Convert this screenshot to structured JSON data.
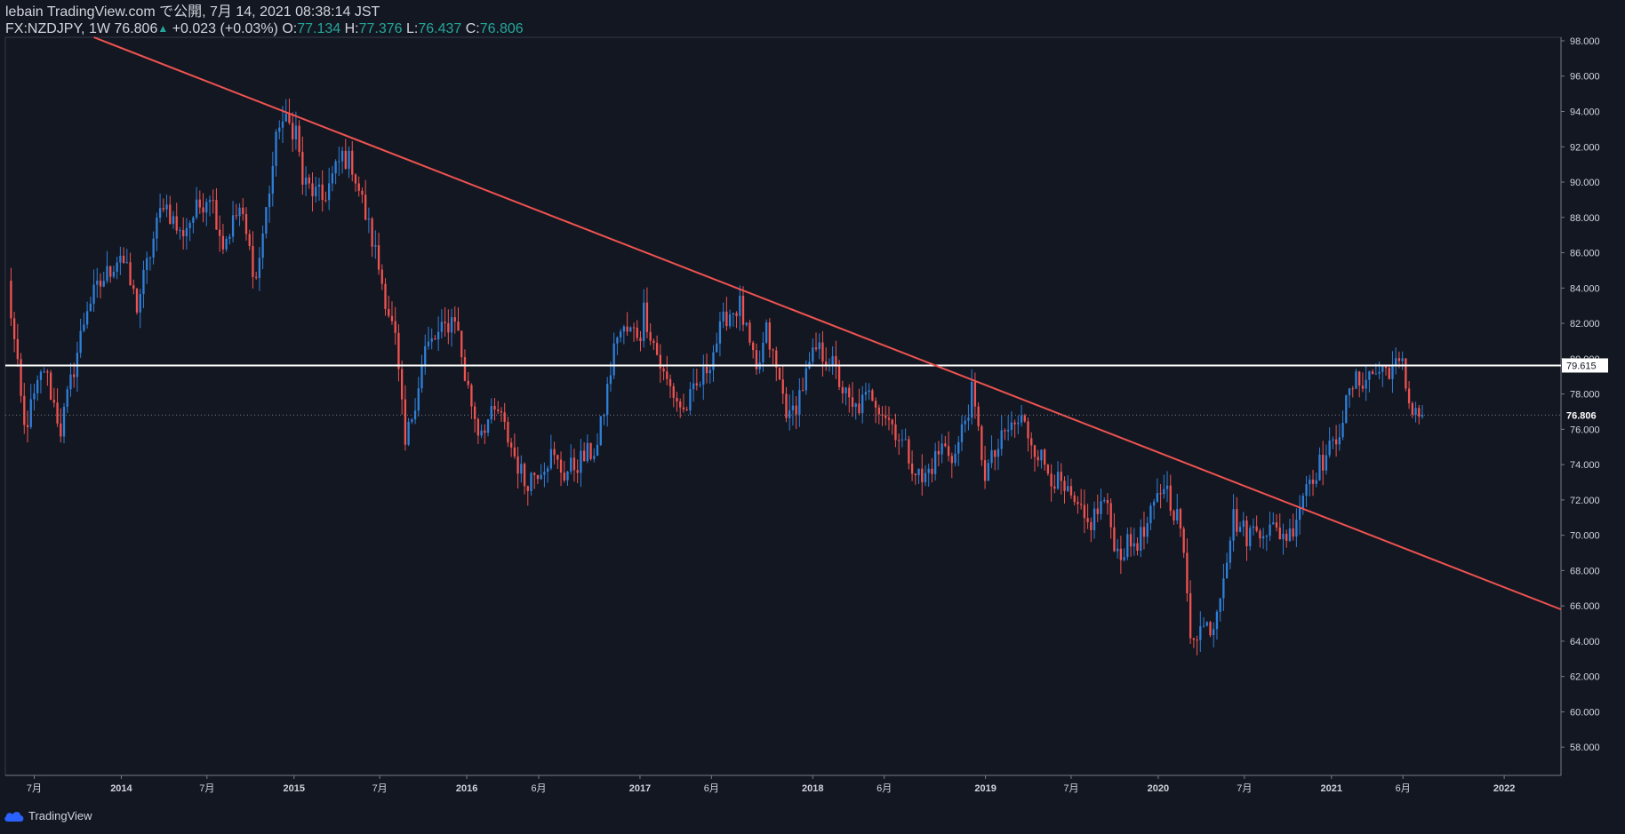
{
  "header": {
    "published_line": "lebain TradingView.com で公開, 7月 14, 2021 08:38:14 JST",
    "symbol": "FX:NZDJPY, 1W",
    "last": "76.806",
    "change_arrow": "▲",
    "change": "+0.023 (+0.03%)",
    "o_label": "O:",
    "o_value": "77.134",
    "h_label": "H:",
    "h_value": "77.376",
    "l_label": "L:",
    "l_value": "76.437",
    "c_label": "C:",
    "c_value": "76.806"
  },
  "footer": {
    "brand": "TradingView"
  },
  "colors": {
    "background": "#131722",
    "up": "#2f7fd8",
    "down": "#ef5350",
    "trendline": "#ef5350",
    "hline": "#ffffff",
    "axis_text": "#d1d4dc",
    "grid_border": "#363a45"
  },
  "chart_data": {
    "type": "candlestick",
    "title": "",
    "ylim": [
      56.4,
      98.2
    ],
    "y_ticks": [
      58,
      60,
      62,
      64,
      66,
      68,
      70,
      72,
      74,
      76,
      78,
      80,
      82,
      84,
      86,
      88,
      90,
      92,
      94,
      96,
      98
    ],
    "y_tick_labels": [
      "58.000",
      "60.000",
      "62.000",
      "64.000",
      "66.000",
      "68.000",
      "70.000",
      "72.000",
      "74.000",
      "76.000",
      "78.000",
      "80.000",
      "82.000",
      "84.000",
      "86.000",
      "88.000",
      "90.000",
      "92.000",
      "94.000",
      "96.000",
      "98.000"
    ],
    "x_range": [
      "2013-05-01",
      "2022-05-01"
    ],
    "x_ticks": [
      {
        "date": "2013-07-01",
        "label": "7月",
        "bold": false
      },
      {
        "date": "2014-01-01",
        "label": "2014",
        "bold": true
      },
      {
        "date": "2014-07-01",
        "label": "7月",
        "bold": false
      },
      {
        "date": "2015-01-01",
        "label": "2015",
        "bold": true
      },
      {
        "date": "2015-07-01",
        "label": "7月",
        "bold": false
      },
      {
        "date": "2016-01-01",
        "label": "2016",
        "bold": true
      },
      {
        "date": "2016-06-01",
        "label": "6月",
        "bold": false
      },
      {
        "date": "2017-01-01",
        "label": "2017",
        "bold": true
      },
      {
        "date": "2017-06-01",
        "label": "6月",
        "bold": false
      },
      {
        "date": "2018-01-01",
        "label": "2018",
        "bold": true
      },
      {
        "date": "2018-06-01",
        "label": "6月",
        "bold": false
      },
      {
        "date": "2019-01-01",
        "label": "2019",
        "bold": true
      },
      {
        "date": "2019-07-01",
        "label": "7月",
        "bold": false
      },
      {
        "date": "2020-01-01",
        "label": "2020",
        "bold": true
      },
      {
        "date": "2020-07-01",
        "label": "7月",
        "bold": false
      },
      {
        "date": "2021-01-01",
        "label": "2021",
        "bold": true
      },
      {
        "date": "2021-06-01",
        "label": "6月",
        "bold": false
      },
      {
        "date": "2022-01-01",
        "label": "2022",
        "bold": true
      }
    ],
    "price_path": [
      [
        "2013-05-06",
        84.2
      ],
      [
        "2013-06-10",
        76.0
      ],
      [
        "2013-07-22",
        79.5
      ],
      [
        "2013-08-26",
        76.0
      ],
      [
        "2013-10-21",
        83.0
      ],
      [
        "2013-12-30",
        86.0
      ],
      [
        "2014-02-03",
        83.0
      ],
      [
        "2014-03-31",
        89.0
      ],
      [
        "2014-05-05",
        87.0
      ],
      [
        "2014-07-07",
        89.5
      ],
      [
        "2014-08-04",
        86.5
      ],
      [
        "2014-09-08",
        88.5
      ],
      [
        "2014-10-13",
        84.5
      ],
      [
        "2014-12-01",
        93.5
      ],
      [
        "2015-01-05",
        93.0
      ],
      [
        "2015-01-19",
        90.0
      ],
      [
        "2015-03-02",
        89.0
      ],
      [
        "2015-04-13",
        91.5
      ],
      [
        "2015-05-04",
        91.0
      ],
      [
        "2015-06-22",
        86.0
      ],
      [
        "2015-08-03",
        81.0
      ],
      [
        "2015-08-24",
        75.0
      ],
      [
        "2015-10-05",
        80.5
      ],
      [
        "2015-11-09",
        81.5
      ],
      [
        "2015-12-07",
        82.5
      ],
      [
        "2015-12-28",
        79.0
      ],
      [
        "2016-01-25",
        76.0
      ],
      [
        "2016-03-07",
        77.0
      ],
      [
        "2016-05-02",
        73.0
      ],
      [
        "2016-06-27",
        74.5
      ],
      [
        "2016-07-25",
        73.5
      ],
      [
        "2016-10-03",
        75.0
      ],
      [
        "2016-11-14",
        81.5
      ],
      [
        "2017-01-02",
        81.5
      ],
      [
        "2017-01-09",
        82.8
      ],
      [
        "2017-02-20",
        79.0
      ],
      [
        "2017-04-03",
        77.0
      ],
      [
        "2017-05-15",
        79.0
      ],
      [
        "2017-07-03",
        82.5
      ],
      [
        "2017-07-31",
        83.0
      ],
      [
        "2017-09-04",
        79.0
      ],
      [
        "2017-09-25",
        81.5
      ],
      [
        "2017-11-13",
        76.5
      ],
      [
        "2018-01-08",
        80.5
      ],
      [
        "2018-02-05",
        80.0
      ],
      [
        "2018-03-26",
        77.0
      ],
      [
        "2018-05-07",
        78.0
      ],
      [
        "2018-06-25",
        76.0
      ],
      [
        "2018-08-20",
        73.0
      ],
      [
        "2018-10-01",
        75.0
      ],
      [
        "2018-10-29",
        74.5
      ],
      [
        "2018-12-03",
        78.0
      ],
      [
        "2018-12-31",
        73.5
      ],
      [
        "2019-02-18",
        76.0
      ],
      [
        "2019-03-18",
        76.5
      ],
      [
        "2019-05-06",
        74.0
      ],
      [
        "2019-08-05",
        70.5
      ],
      [
        "2019-09-09",
        72.0
      ],
      [
        "2019-10-07",
        69.0
      ],
      [
        "2019-12-02",
        70.0
      ],
      [
        "2020-01-13",
        73.0
      ],
      [
        "2020-02-17",
        70.5
      ],
      [
        "2020-03-09",
        64.5
      ],
      [
        "2020-04-27",
        65.0
      ],
      [
        "2020-06-08",
        71.0
      ],
      [
        "2020-07-06",
        70.0
      ],
      [
        "2020-08-03",
        70.5
      ],
      [
        "2020-10-05",
        70.0
      ],
      [
        "2020-11-09",
        73.0
      ],
      [
        "2021-01-04",
        75.0
      ],
      [
        "2021-02-15",
        78.5
      ],
      [
        "2021-03-15",
        79.0
      ],
      [
        "2021-05-03",
        79.5
      ],
      [
        "2021-05-31",
        79.5
      ],
      [
        "2021-06-14",
        77.5
      ],
      [
        "2021-07-12",
        76.8
      ]
    ],
    "last_close": 76.806,
    "trendline": {
      "from": {
        "date": "2013-11-04",
        "price": 98.2
      },
      "to": {
        "date": "2022-05-01",
        "price": 65.8
      }
    },
    "horizontal_line": {
      "price": 79.615,
      "label": "79.615"
    },
    "last_price_label": "76.806"
  }
}
